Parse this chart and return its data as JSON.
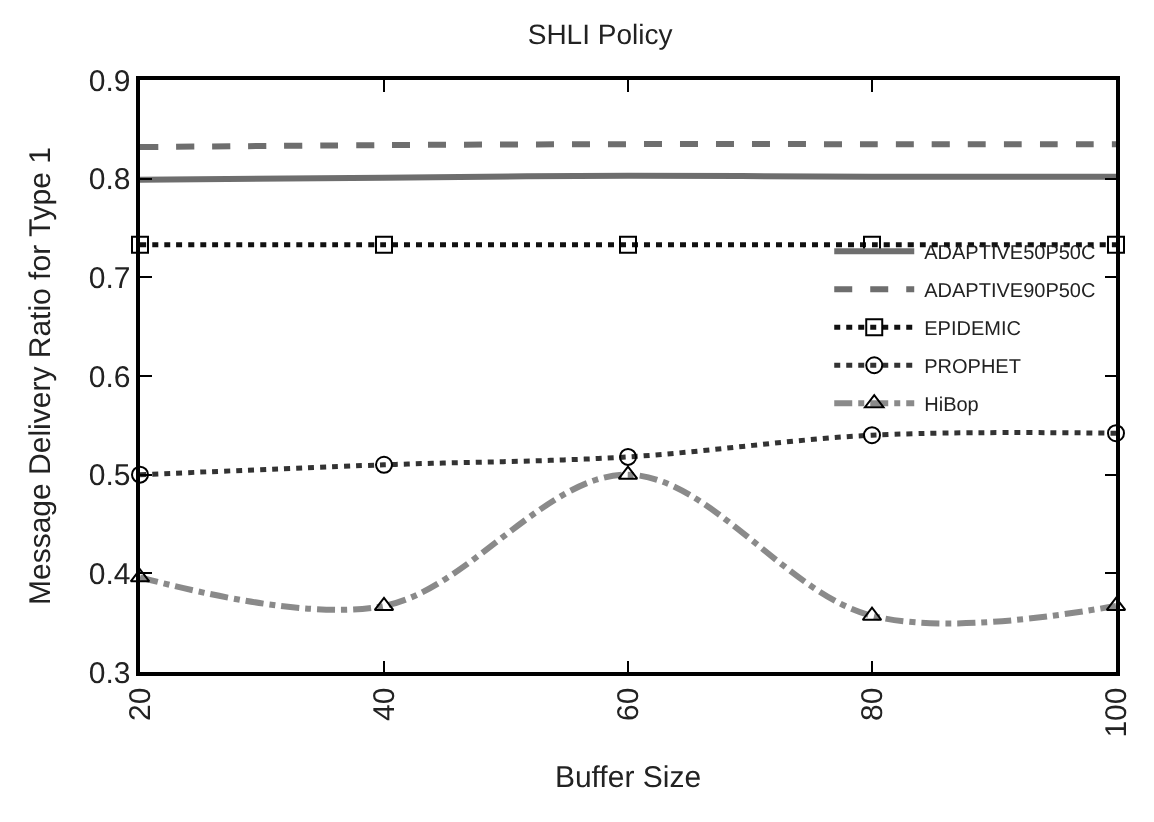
{
  "chart_data": {
    "type": "line",
    "title": "SHLI Policy",
    "xlabel": "Buffer Size",
    "ylabel": "Message Delivery Ratio for Type 1",
    "x": [
      20,
      40,
      60,
      80,
      100
    ],
    "xlim": [
      20,
      100
    ],
    "xticks": [
      20,
      40,
      60,
      80,
      100
    ],
    "ylim": [
      0.3,
      0.9
    ],
    "yticks": [
      0.3,
      0.4,
      0.5,
      0.6,
      0.7,
      0.8,
      0.9
    ],
    "legend": "right",
    "series": [
      {
        "name": "ADAPTIVE50P50C",
        "color": "#6e6e6e",
        "line_style": "solid",
        "marker": "none",
        "values": [
          0.799,
          0.801,
          0.803,
          0.802,
          0.802
        ]
      },
      {
        "name": "ADAPTIVE90P50C",
        "color": "#6e6e6e",
        "line_style": "dashed",
        "marker": "none",
        "values": [
          0.832,
          0.834,
          0.835,
          0.835,
          0.835
        ]
      },
      {
        "name": "EPIDEMIC",
        "color": "#111111",
        "line_style": "dotted",
        "marker": "square",
        "values": [
          0.733,
          0.733,
          0.733,
          0.733,
          0.733
        ]
      },
      {
        "name": "PROPHET",
        "color": "#333333",
        "line_style": "dotted",
        "marker": "circle",
        "values": [
          0.5,
          0.51,
          0.518,
          0.54,
          0.542
        ]
      },
      {
        "name": "HiBop",
        "color": "#8a8a8a",
        "line_style": "dashdot",
        "marker": "triangle",
        "values": [
          0.396,
          0.367,
          0.5,
          0.357,
          0.367
        ]
      }
    ]
  }
}
